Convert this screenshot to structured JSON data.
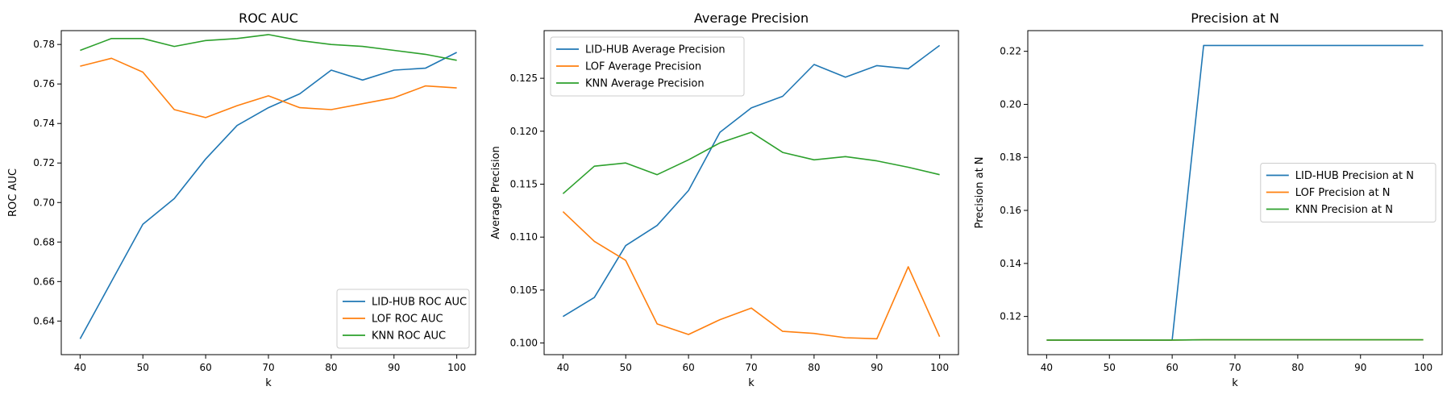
{
  "chart_data": [
    {
      "type": "line",
      "title": "ROC AUC",
      "xlabel": "k",
      "ylabel": "ROC AUC",
      "xlim": [
        37,
        103
      ],
      "ylim": [
        0.623,
        0.787
      ],
      "xticks": [
        40,
        50,
        60,
        70,
        80,
        90,
        100
      ],
      "xtick_labels": [
        "40",
        "50",
        "60",
        "70",
        "80",
        "90",
        "100"
      ],
      "yticks": [
        0.64,
        0.66,
        0.68,
        0.7,
        0.72,
        0.74,
        0.76,
        0.78
      ],
      "ytick_labels": [
        "0.64",
        "0.66",
        "0.68",
        "0.70",
        "0.72",
        "0.74",
        "0.76",
        "0.78"
      ],
      "legend_position": "lower-right",
      "x": [
        40,
        45,
        50,
        55,
        60,
        65,
        70,
        75,
        80,
        85,
        90,
        95,
        100
      ],
      "series": [
        {
          "name": "LID-HUB ROC AUC",
          "color": "#1f77b4",
          "values": [
            0.631,
            0.66,
            0.689,
            0.702,
            0.722,
            0.739,
            0.748,
            0.755,
            0.767,
            0.762,
            0.767,
            0.768,
            0.776
          ]
        },
        {
          "name": "LOF ROC AUC",
          "color": "#ff7f0e",
          "values": [
            0.769,
            0.773,
            0.766,
            0.747,
            0.743,
            0.749,
            0.754,
            0.748,
            0.747,
            0.75,
            0.753,
            0.759,
            0.758
          ]
        },
        {
          "name": "KNN ROC AUC",
          "color": "#2ca02c",
          "values": [
            0.777,
            0.783,
            0.783,
            0.779,
            0.782,
            0.783,
            0.785,
            0.782,
            0.78,
            0.779,
            0.777,
            0.775,
            0.772
          ]
        }
      ]
    },
    {
      "type": "line",
      "title": "Average Precision",
      "xlabel": "k",
      "ylabel": "Average Precision",
      "xlim": [
        37,
        103
      ],
      "ylim": [
        0.0989,
        0.1295
      ],
      "xticks": [
        40,
        50,
        60,
        70,
        80,
        90,
        100
      ],
      "xtick_labels": [
        "40",
        "50",
        "60",
        "70",
        "80",
        "90",
        "100"
      ],
      "yticks": [
        0.1,
        0.105,
        0.11,
        0.115,
        0.12,
        0.125
      ],
      "ytick_labels": [
        "0.100",
        "0.105",
        "0.110",
        "0.115",
        "0.120",
        "0.125"
      ],
      "legend_position": "upper-left",
      "x": [
        40,
        45,
        50,
        55,
        60,
        65,
        70,
        75,
        80,
        85,
        90,
        95,
        100
      ],
      "series": [
        {
          "name": "LID-HUB Average Precision",
          "color": "#1f77b4",
          "values": [
            0.1025,
            0.1043,
            0.1092,
            0.1111,
            0.1144,
            0.1199,
            0.1222,
            0.1233,
            0.1263,
            0.1251,
            0.1262,
            0.1259,
            0.1281
          ]
        },
        {
          "name": "LOF Average Precision",
          "color": "#ff7f0e",
          "values": [
            0.1124,
            0.1096,
            0.1078,
            0.1018,
            0.1008,
            0.1022,
            0.1033,
            0.1011,
            0.1009,
            0.1005,
            0.1004,
            0.1072,
            0.1006
          ]
        },
        {
          "name": "KNN Average Precision",
          "color": "#2ca02c",
          "values": [
            0.1141,
            0.1167,
            0.117,
            0.1159,
            0.1173,
            0.1189,
            0.1199,
            0.118,
            0.1173,
            0.1176,
            0.1172,
            0.1166,
            0.1159
          ]
        }
      ]
    },
    {
      "type": "line",
      "title": "Precision at N",
      "xlabel": "k",
      "ylabel": "Precision at N",
      "xlim": [
        37,
        103
      ],
      "ylim": [
        0.1056,
        0.2278
      ],
      "xticks": [
        40,
        50,
        60,
        70,
        80,
        90,
        100
      ],
      "xtick_labels": [
        "40",
        "50",
        "60",
        "70",
        "80",
        "90",
        "100"
      ],
      "yticks": [
        0.12,
        0.14,
        0.16,
        0.18,
        0.2,
        0.22
      ],
      "ytick_labels": [
        "0.12",
        "0.14",
        "0.16",
        "0.18",
        "0.20",
        "0.22"
      ],
      "legend_position": "center-right",
      "x": [
        40,
        45,
        50,
        55,
        60,
        65,
        70,
        75,
        80,
        85,
        90,
        95,
        100
      ],
      "series": [
        {
          "name": "LID-HUB Precision at N",
          "color": "#1f77b4",
          "values": [
            0.1111,
            0.1111,
            0.1111,
            0.1111,
            0.1111,
            0.2222,
            0.2222,
            0.2222,
            0.2222,
            0.2222,
            0.2222,
            0.2222,
            0.2222
          ]
        },
        {
          "name": "LOF Precision at N",
          "color": "#ff7f0e",
          "values": [
            0.1111,
            0.1111,
            0.1111,
            0.1111,
            0.1111,
            0.1112,
            0.1112,
            0.1112,
            0.1112,
            0.1112,
            0.1112,
            0.1112,
            0.1112
          ]
        },
        {
          "name": "KNN Precision at N",
          "color": "#2ca02c",
          "values": [
            0.1111,
            0.1111,
            0.1111,
            0.1111,
            0.1111,
            0.1112,
            0.1112,
            0.1112,
            0.1112,
            0.1112,
            0.1112,
            0.1112,
            0.1112
          ]
        }
      ]
    }
  ]
}
